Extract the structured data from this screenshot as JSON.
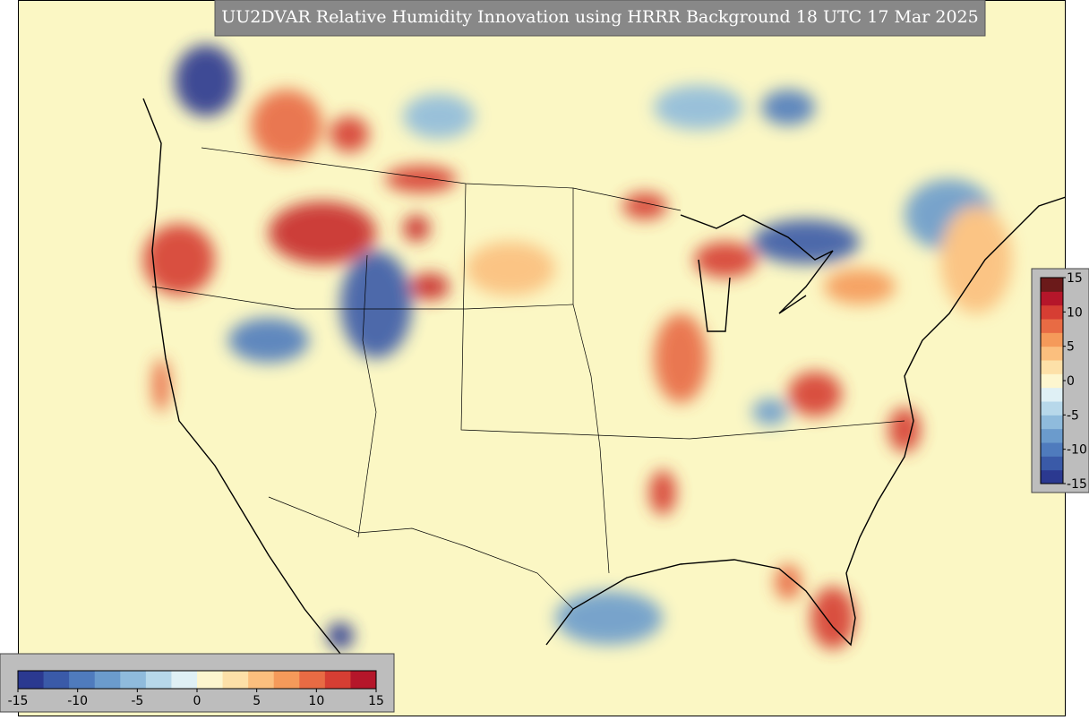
{
  "title": "UU2DVAR Relative Humidity Innovation using HRRR Background 18 UTC 17 Mar 2025",
  "colorbars": [
    {
      "orientation": "horizontal",
      "ticks": [
        -15,
        -10,
        -5,
        0,
        5,
        10,
        15
      ],
      "colors": [
        "#2b3990",
        "#3a5aa8",
        "#4f7bbd",
        "#6b9bcc",
        "#8fbbdc",
        "#b7d8ea",
        "#dff0f5",
        "#fdf6cf",
        "#fde0a8",
        "#fbbf7e",
        "#f59a5a",
        "#e86b44",
        "#d63e33",
        "#b5162a"
      ]
    },
    {
      "orientation": "vertical",
      "ticks": [
        15,
        10,
        5,
        0,
        -5,
        -10,
        -15
      ],
      "colors": [
        "#2b3990",
        "#3a5aa8",
        "#4f7bbd",
        "#6b9bcc",
        "#8fbbdc",
        "#b7d8ea",
        "#dff0f5",
        "#fdf6cf",
        "#fde0a8",
        "#fbbf7e",
        "#f59a5a",
        "#e86b44",
        "#d63e33",
        "#b5162a",
        "#6b1a1a"
      ]
    }
  ]
}
